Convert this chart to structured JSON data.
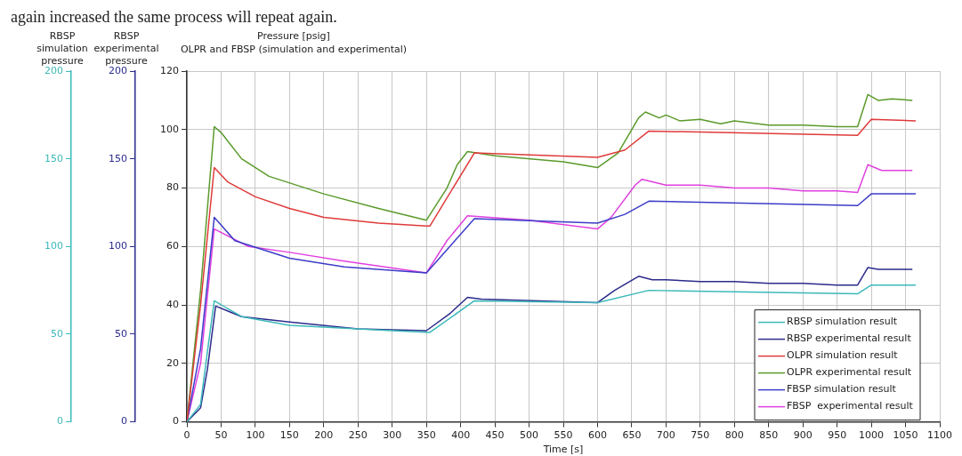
{
  "chart_data": {
    "type": "line",
    "subtitle": "OLPR and FBSP (simulation and experimental)",
    "xlabel": "Time [s]",
    "ylabel": "Pressure [psig]",
    "y2label": "RBSP simulation pressure",
    "y3label": "RBSP experimental pressure",
    "annotations": [
      "again increased the same process will repeat again."
    ],
    "xlim": [
      0,
      1100
    ],
    "xticks": [
      0,
      50,
      100,
      150,
      200,
      250,
      300,
      350,
      400,
      450,
      500,
      550,
      600,
      650,
      700,
      750,
      800,
      850,
      900,
      950,
      1000,
      1050,
      1100
    ],
    "ylim": [
      0,
      120
    ],
    "yticks": [
      0,
      20,
      40,
      60,
      80,
      100,
      120
    ],
    "y2lim": [
      0,
      200
    ],
    "y2ticks": [
      0,
      50,
      100,
      150,
      200
    ],
    "y3lim": [
      0,
      200
    ],
    "y3ticks": [
      0,
      50,
      100,
      150,
      200
    ],
    "grid": true,
    "legend": "bottom right",
    "marker": "none",
    "line_style": "solid",
    "series": [
      {
        "name": "RBSP simulation result",
        "color": "#3cb9b9",
        "axis": "y2",
        "x": [
          0,
          20,
          30,
          40,
          80,
          150,
          300,
          355,
          420,
          600,
          675,
          980,
          1000,
          1065
        ],
        "values": [
          0,
          10,
          40,
          69,
          60,
          55,
          52,
          51,
          69,
          68,
          75,
          73,
          78,
          78
        ]
      },
      {
        "name": "RBSP experimental result",
        "color": "#2b2b8c",
        "axis": "y3",
        "x": [
          0,
          20,
          30,
          42,
          80,
          150,
          250,
          350,
          385,
          410,
          430,
          600,
          625,
          660,
          680,
          700,
          750,
          800,
          850,
          900,
          950,
          980,
          995,
          1010,
          1060
        ],
        "values": [
          0,
          8,
          30,
          66,
          60,
          57,
          53,
          52,
          62,
          71,
          70,
          68,
          75,
          83,
          81,
          81,
          80,
          80,
          79,
          79,
          78,
          78,
          88,
          87,
          87
        ]
      },
      {
        "name": "OLPR simulation result",
        "color": "#e03a3a",
        "x": [
          0,
          20,
          40,
          60,
          100,
          150,
          200,
          280,
          350,
          355,
          420,
          600,
          640,
          675,
          980,
          1000,
          1065
        ],
        "values": [
          0,
          40,
          87,
          82,
          77,
          73,
          70,
          68,
          67,
          67,
          92,
          90.5,
          93,
          99.5,
          98,
          103.5,
          103
        ]
      },
      {
        "name": "OLPR experimental result",
        "color": "#5a9a2a",
        "x": [
          0,
          20,
          40,
          50,
          80,
          120,
          200,
          280,
          350,
          380,
          395,
          410,
          450,
          550,
          600,
          630,
          660,
          670,
          690,
          700,
          720,
          750,
          780,
          800,
          850,
          900,
          950,
          980,
          995,
          1010,
          1030,
          1060
        ],
        "values": [
          0,
          45,
          101,
          99,
          90,
          84,
          78,
          73,
          69,
          80,
          88,
          92.5,
          91,
          89,
          87,
          92,
          104,
          106,
          104,
          105,
          103,
          103.5,
          102,
          103,
          101.5,
          101.5,
          101,
          101,
          112,
          110,
          110.5,
          110
        ]
      },
      {
        "name": "FBSP simulation result",
        "color": "#3c3cc8",
        "x": [
          0,
          20,
          40,
          70,
          150,
          230,
          350,
          420,
          600,
          640,
          675,
          980,
          1000,
          1065
        ],
        "values": [
          0,
          25,
          70,
          62,
          56,
          53,
          51,
          69.5,
          68,
          71,
          75.5,
          74,
          78,
          78
        ]
      },
      {
        "name": "FBSP  experimental result",
        "color": "#e040e0",
        "x": [
          0,
          20,
          40,
          90,
          150,
          230,
          350,
          380,
          410,
          500,
          600,
          620,
          655,
          665,
          700,
          750,
          800,
          850,
          900,
          950,
          980,
          995,
          1015,
          1060
        ],
        "values": [
          0,
          20,
          66,
          60,
          58,
          55,
          51,
          62,
          70.5,
          69,
          66,
          70,
          81,
          83,
          81,
          81,
          80,
          80,
          79,
          79,
          78.5,
          88,
          86,
          86
        ]
      }
    ]
  }
}
